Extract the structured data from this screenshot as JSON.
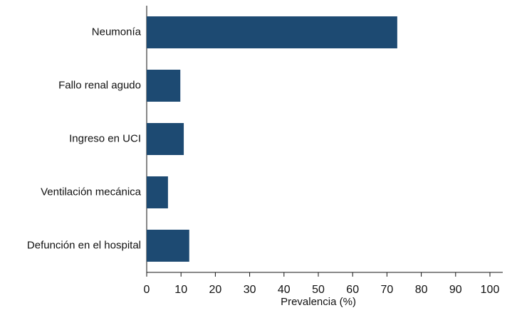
{
  "chart_data": {
    "type": "bar",
    "orientation": "horizontal",
    "categories": [
      "Neumonía",
      "Fallo renal agudo",
      "Ingreso en UCI",
      "Ventilación mecánica",
      "Defunción en el hospital"
    ],
    "values": [
      73,
      9.8,
      10.8,
      6.2,
      12.4
    ],
    "color": "#1d4a72",
    "x_label": "Prevalencia (%)",
    "xlim": [
      0,
      100
    ],
    "xticks": [
      0,
      10,
      20,
      30,
      40,
      50,
      60,
      70,
      80,
      90,
      100
    ],
    "grid": false
  }
}
